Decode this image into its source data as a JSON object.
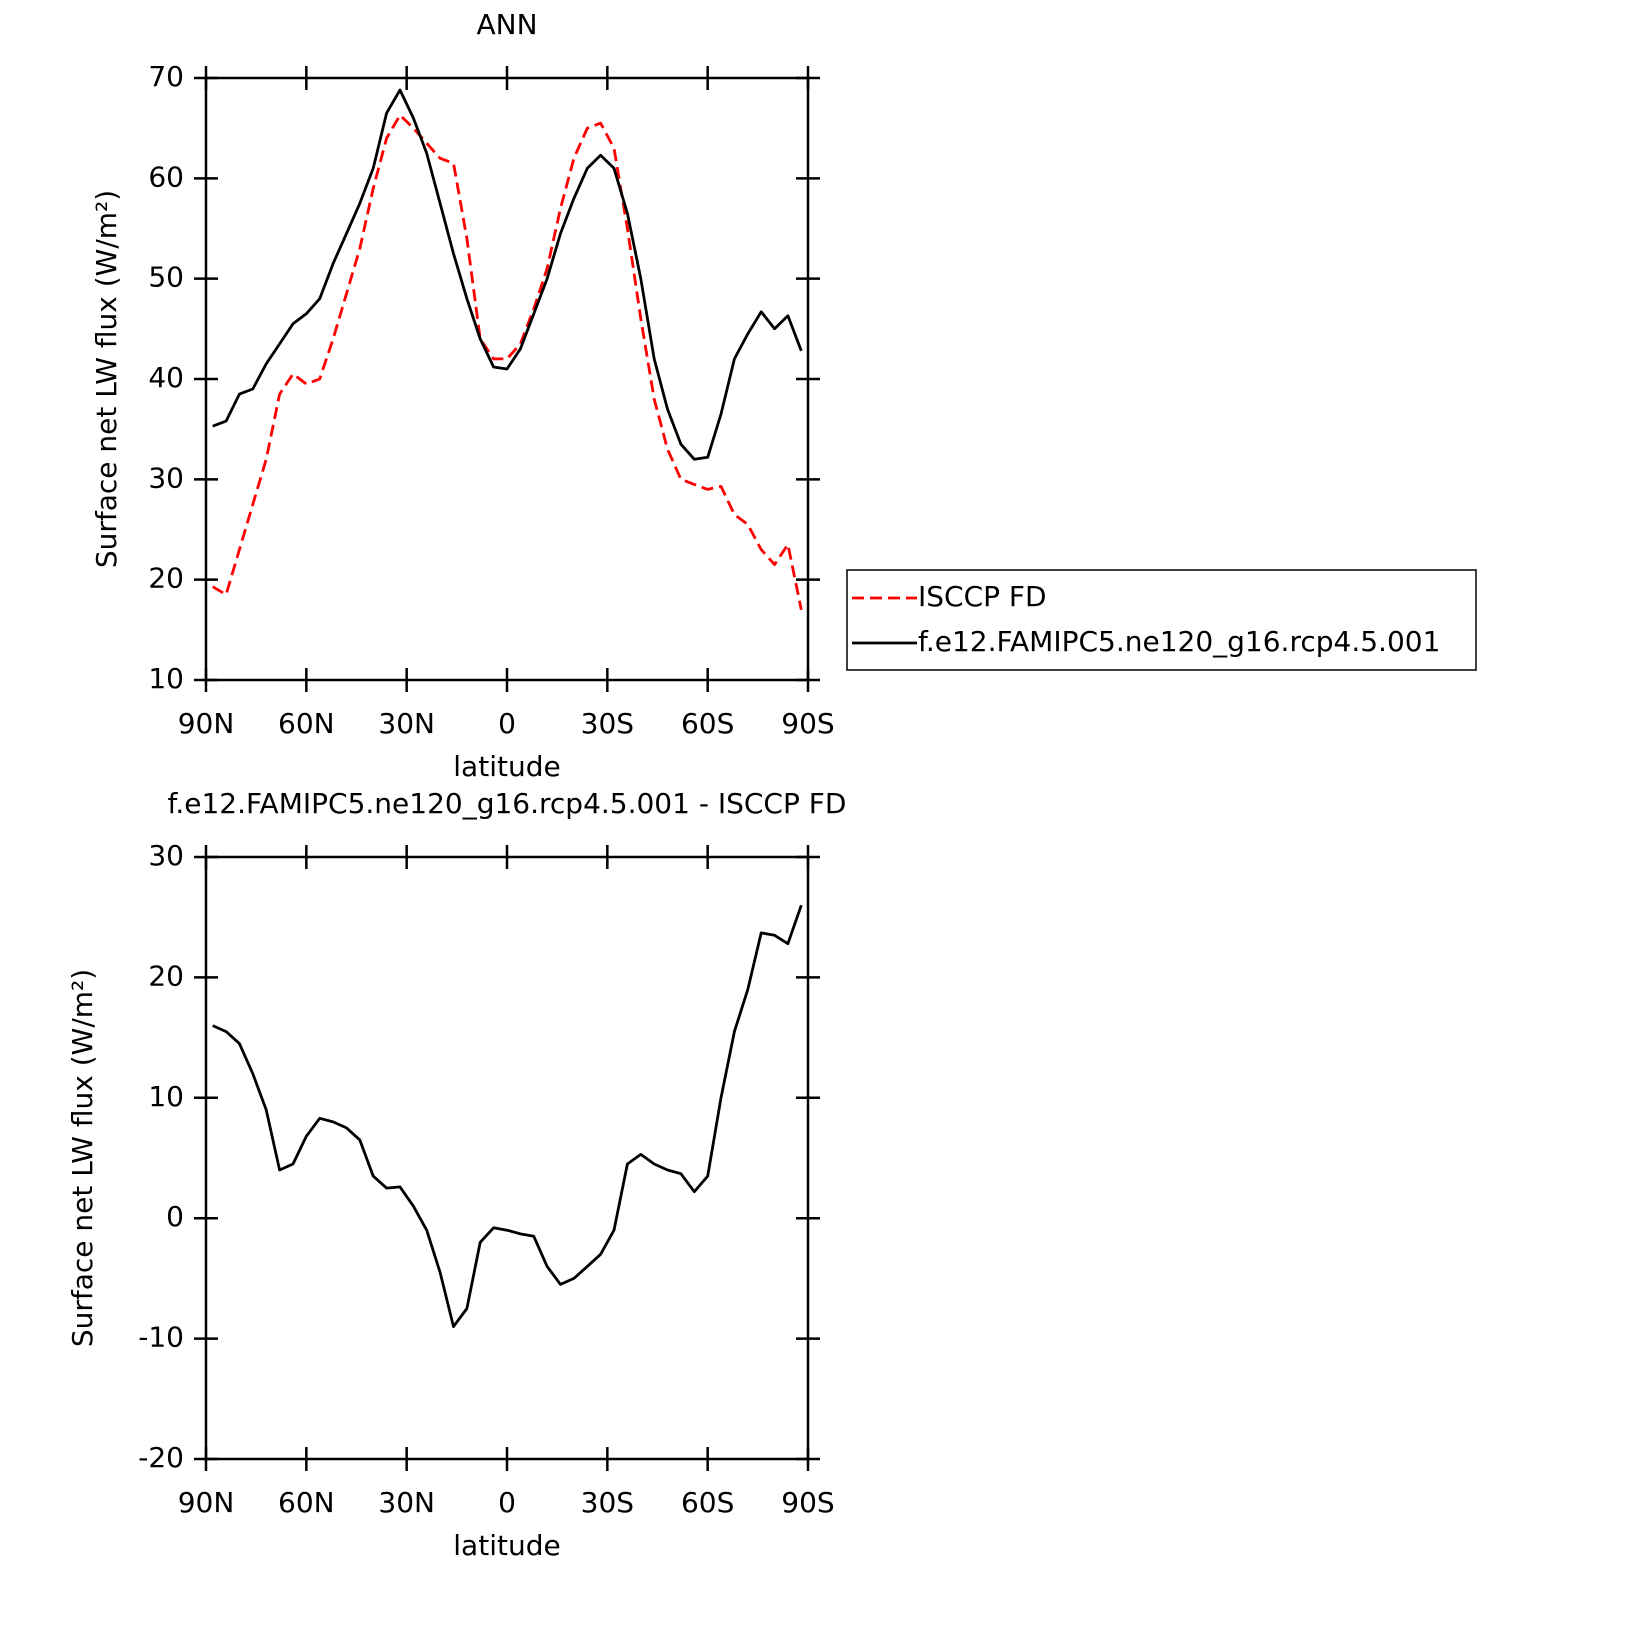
{
  "chart_data": [
    {
      "type": "line",
      "title": "ANN",
      "xlabel": "latitude",
      "ylabel": "Surface net LW flux (W/m²)",
      "x": [
        88,
        84,
        80,
        76,
        72,
        68,
        64,
        60,
        56,
        52,
        48,
        44,
        40,
        36,
        32,
        28,
        24,
        20,
        16,
        12,
        8,
        4,
        0,
        -4,
        -8,
        -12,
        -16,
        -20,
        -24,
        -28,
        -32,
        -36,
        -40,
        -44,
        -48,
        -52,
        -56,
        -60,
        -64,
        -68,
        -72,
        -76,
        -80,
        -84,
        -88
      ],
      "xlim": [
        90,
        -90
      ],
      "xticks": [
        {
          "value": 90,
          "label": "90N"
        },
        {
          "value": 60,
          "label": "60N"
        },
        {
          "value": 30,
          "label": "30N"
        },
        0,
        {
          "value": -30,
          "label": "30S"
        },
        {
          "value": -60,
          "label": "60S"
        },
        {
          "value": -90,
          "label": "90S"
        }
      ],
      "ylim": [
        10,
        70
      ],
      "yticks": [
        10,
        20,
        30,
        40,
        50,
        60,
        70
      ],
      "legend": "outside-right",
      "series": [
        {
          "name": "ISCCP FD",
          "color": "#ff0000",
          "dash": true,
          "values": [
            19.3,
            18.5,
            23,
            27.5,
            32,
            38.5,
            40.5,
            39.5,
            40,
            44,
            48.5,
            53,
            59,
            64,
            66.3,
            65,
            63.5,
            62,
            61.5,
            54,
            44,
            42,
            42,
            43.5,
            47,
            51,
            57,
            62,
            65,
            65.5,
            63,
            55,
            46,
            38,
            33,
            30,
            29.5,
            29,
            29.3,
            26.5,
            25.5,
            23,
            21.5,
            23.5,
            17
          ]
        },
        {
          "name": "f.e12.FAMIPC5.ne120_g16.rcp4.5.001",
          "color": "#000000",
          "dash": false,
          "values": [
            35.3,
            35.8,
            38.5,
            39,
            41.5,
            43.5,
            45.5,
            46.5,
            48,
            51.5,
            54.5,
            57.5,
            61,
            66.5,
            68.8,
            66,
            62.5,
            57.5,
            52.5,
            48,
            44,
            41.2,
            41,
            43,
            46.5,
            50,
            54.5,
            58,
            61,
            62.3,
            61,
            56.5,
            50,
            42,
            37,
            33.5,
            32,
            32.2,
            36.5,
            42,
            44.5,
            46.7,
            45,
            46.3,
            42.8
          ]
        }
      ]
    },
    {
      "type": "line",
      "title": "f.e12.FAMIPC5.ne120_g16.rcp4.5.001 - ISCCP FD",
      "xlabel": "latitude",
      "ylabel": "Surface net LW flux (W/m²)",
      "x": [
        88,
        84,
        80,
        76,
        72,
        68,
        64,
        60,
        56,
        52,
        48,
        44,
        40,
        36,
        32,
        28,
        24,
        20,
        16,
        12,
        8,
        4,
        0,
        -4,
        -8,
        -12,
        -16,
        -20,
        -24,
        -28,
        -32,
        -36,
        -40,
        -44,
        -48,
        -52,
        -56,
        -60,
        -64,
        -68,
        -72,
        -76,
        -80,
        -84,
        -88
      ],
      "xlim": [
        90,
        -90
      ],
      "xticks": [
        {
          "value": 90,
          "label": "90N"
        },
        {
          "value": 60,
          "label": "60N"
        },
        {
          "value": 30,
          "label": "30N"
        },
        0,
        {
          "value": -30,
          "label": "30S"
        },
        {
          "value": -60,
          "label": "60S"
        },
        {
          "value": -90,
          "label": "90S"
        }
      ],
      "ylim": [
        -20,
        30
      ],
      "yticks": [
        -20,
        -10,
        0,
        10,
        20,
        30
      ],
      "series": [
        {
          "color": "#000000",
          "dash": false,
          "values": [
            16,
            15.5,
            14.5,
            12,
            9,
            4,
            4.5,
            6.8,
            8.3,
            8,
            7.5,
            6.5,
            3.5,
            2.5,
            2.6,
            1,
            -1,
            -4.5,
            -9,
            -7.5,
            -2,
            -0.8,
            -1,
            -1.3,
            -1.5,
            -4,
            -5.5,
            -5,
            -4,
            -3,
            -1,
            4.5,
            5.3,
            4.5,
            4,
            3.7,
            2.2,
            3.5,
            10,
            15.5,
            19,
            23.7,
            23.5,
            22.8,
            26
          ]
        }
      ]
    }
  ]
}
